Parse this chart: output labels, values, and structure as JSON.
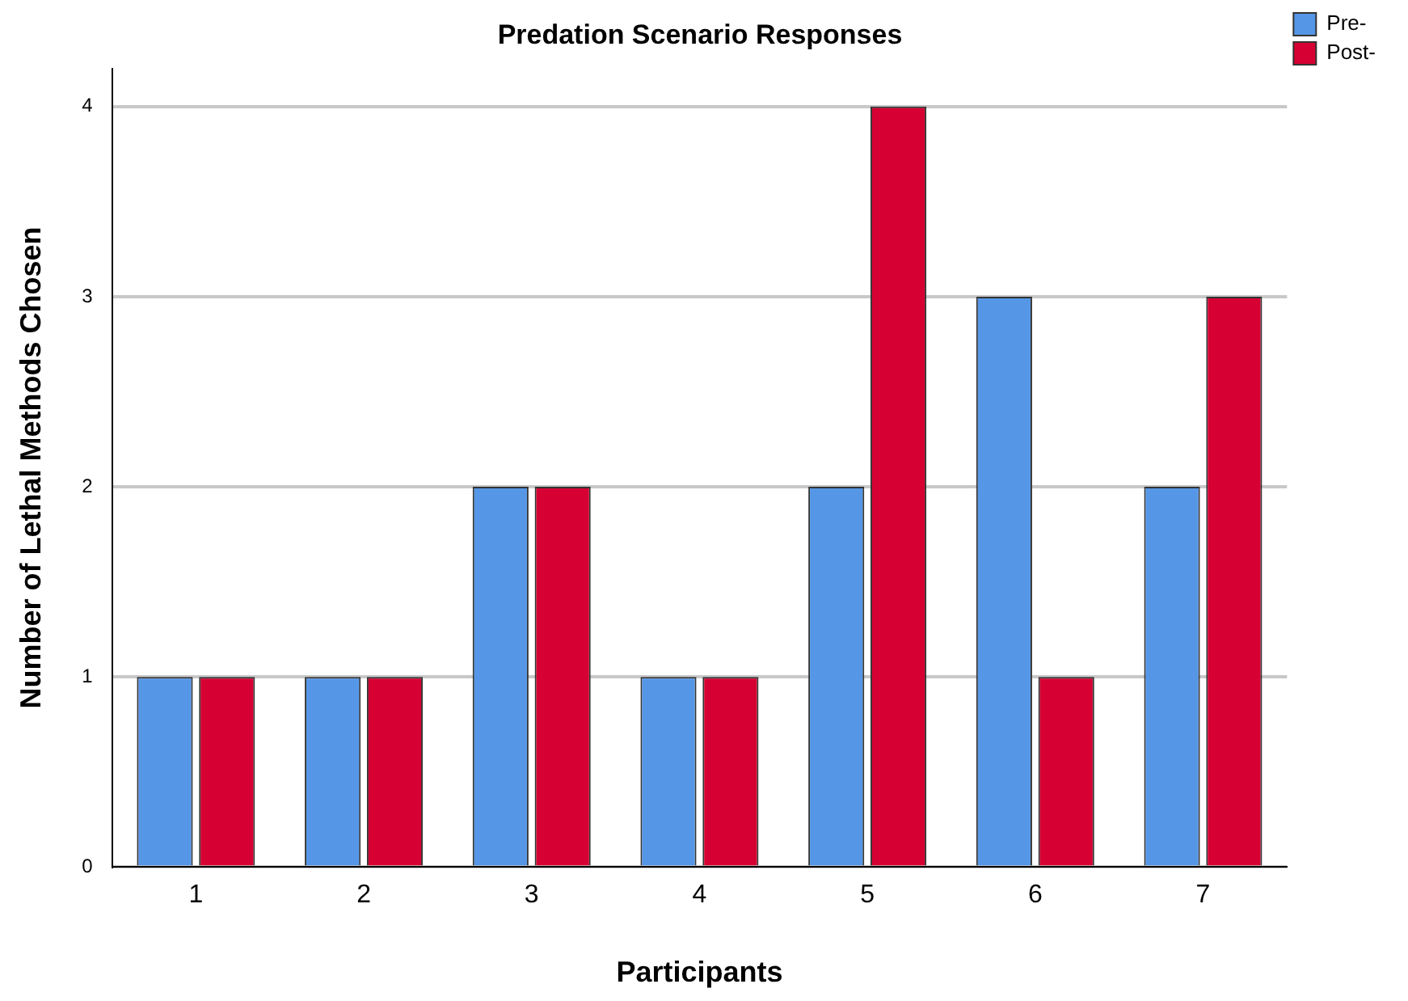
{
  "chart_data": {
    "type": "bar",
    "title": "Predation Scenario Responses",
    "xlabel": "Participants",
    "ylabel": "Number of Lethal Methods Chosen",
    "categories": [
      "1",
      "2",
      "3",
      "4",
      "5",
      "6",
      "7"
    ],
    "series": [
      {
        "name": "Pre-",
        "color": "#5596e6",
        "values": [
          1,
          1,
          2,
          1,
          2,
          3,
          2
        ]
      },
      {
        "name": "Post-",
        "color": "#d60032",
        "values": [
          1,
          1,
          2,
          1,
          4,
          1,
          3
        ]
      }
    ],
    "ylim": [
      0,
      4.2
    ],
    "yticks": [
      0,
      1,
      2,
      3,
      4
    ],
    "grid": "y",
    "legend": "top right"
  }
}
